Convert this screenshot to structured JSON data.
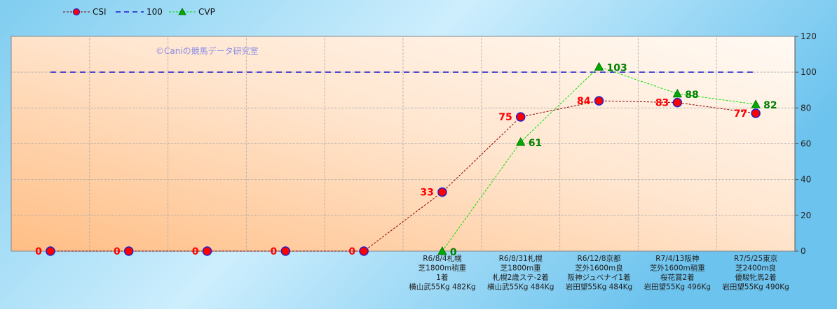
{
  "chart_data": {
    "type": "line",
    "watermark": "©Caniの競馬データ研究室",
    "legend_placement": "top-left",
    "ylim": [
      0,
      120
    ],
    "yticks": [
      "0",
      "20",
      "40",
      "60",
      "80",
      "100",
      "120"
    ],
    "grid": true,
    "categories": [
      [],
      [],
      [],
      [],
      [],
      [
        "R6/8/4札幌",
        "芝1800m稍重",
        "1着",
        "横山武55Kg 482Kg"
      ],
      [
        "R6/8/31札幌",
        "芝1800m重",
        "札幌2歳ステ-2着",
        "横山武55Kg 484Kg"
      ],
      [
        "R6/12/8京都",
        "芝外1600m良",
        "阪神ジュベナイ1着",
        "岩田望55Kg 484Kg"
      ],
      [
        "R7/4/13阪神",
        "芝外1600m稍重",
        "桜花賞2着",
        "岩田望55Kg 496Kg"
      ],
      [
        "R7/5/25東京",
        "芝2400m良",
        "優駿牝馬2着",
        "岩田望55Kg 490Kg"
      ]
    ],
    "series": [
      {
        "name": "CSI",
        "color": "#8b0000",
        "marker_color": "#ff0000",
        "marker_edge": "#2222cc",
        "label_color": "#ff0000",
        "values": [
          0,
          0,
          0,
          0,
          0,
          33,
          75,
          84,
          83,
          77
        ]
      },
      {
        "name": "100",
        "color": "#1a1acc",
        "line_only": true,
        "values": [
          100,
          100,
          100,
          100,
          100,
          100,
          100,
          100,
          100,
          100
        ]
      },
      {
        "name": "CVP",
        "color": "#00e000",
        "marker_color": "#00aa00",
        "label_color": "#008000",
        "values": [
          null,
          null,
          null,
          null,
          null,
          0,
          61,
          103,
          88,
          82
        ]
      }
    ]
  }
}
